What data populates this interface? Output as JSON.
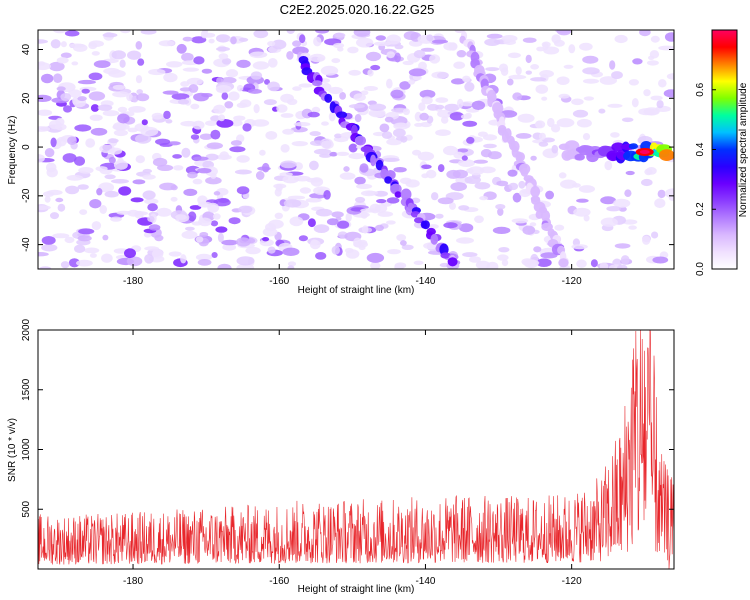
{
  "figure": {
    "title": "C2E2.2025.020.16.22.G25"
  },
  "chart_data": [
    {
      "type": "heatmap",
      "title": "C2E2.2025.020.16.22.G25",
      "xlabel": "Height of straight line (km)",
      "ylabel": "Frequency (Hz)",
      "xlim": [
        -193,
        -106
      ],
      "ylim": [
        -50,
        48
      ],
      "x_ticks": [
        -180,
        -160,
        -140,
        -120
      ],
      "y_ticks": [
        -40,
        -20,
        0,
        20,
        40
      ],
      "colorbar": {
        "label": "Normalized spectral amplitude",
        "range": [
          0,
          0.8
        ],
        "ticks": [
          0.0,
          0.2,
          0.4,
          0.6
        ],
        "colors": [
          "#ffffff",
          "#f0e0ff",
          "#d9b8ff",
          "#b27cff",
          "#8b3cff",
          "#6a00ff",
          "#2a00ff",
          "#0030ff",
          "#00c0ff",
          "#00ffa0",
          "#80ff00",
          "#ffff00",
          "#ff8000",
          "#ff0000",
          "#ff0060"
        ]
      },
      "features": [
        {
          "name": "diagonal band 1",
          "from": [
            -157,
            35
          ],
          "to": [
            -136,
            -48
          ],
          "peak_amplitude": 0.35
        },
        {
          "name": "diagonal band 2",
          "from": [
            -135,
            48
          ],
          "to": [
            -121,
            -48
          ],
          "peak_amplitude": 0.15
        },
        {
          "name": "narrowband signal near 0 Hz",
          "x_range": [
            -121,
            -107
          ],
          "y": -2,
          "peak_amplitude": 0.75
        }
      ]
    },
    {
      "type": "line",
      "xlabel": "Height of straight line (km)",
      "ylabel": "SNR (10 * v/v)",
      "xlim": [
        -193,
        -106
      ],
      "ylim": [
        0,
        2000
      ],
      "x_ticks": [
        -180,
        -160,
        -140,
        -120
      ],
      "y_ticks": [
        500,
        1000,
        1500,
        2000
      ],
      "line_color": "#e8262b",
      "envelope": {
        "x": [
          -193,
          -185,
          -175,
          -165,
          -155,
          -145,
          -135,
          -125,
          -120,
          -116,
          -113,
          -111.5,
          -110,
          -109,
          -108.2,
          -107.5,
          -106
        ],
        "y": [
          250,
          250,
          270,
          290,
          320,
          320,
          340,
          330,
          350,
          420,
          700,
          1200,
          1400,
          1100,
          700,
          500,
          400
        ]
      }
    }
  ]
}
